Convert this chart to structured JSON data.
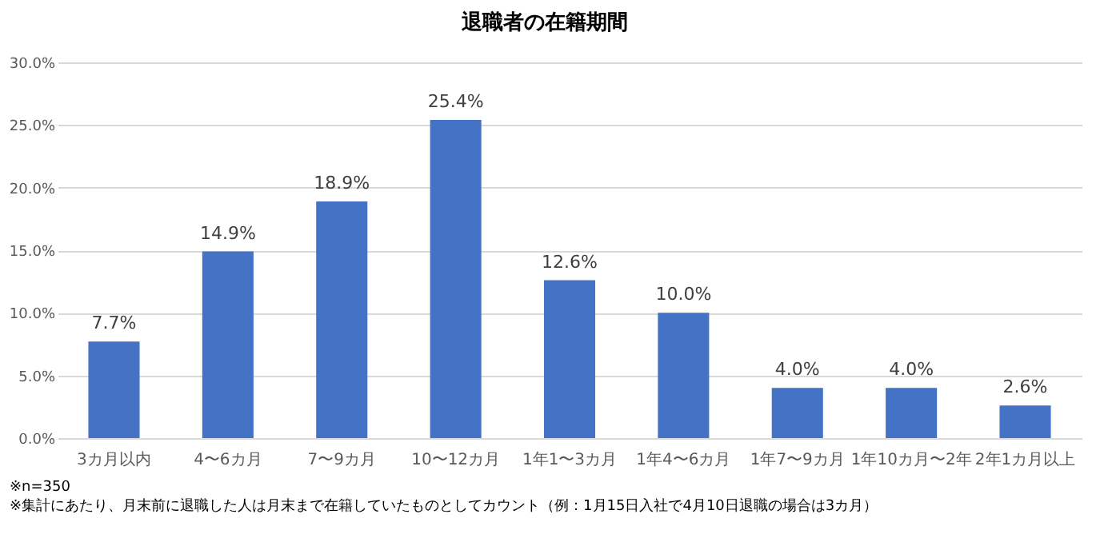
{
  "chart_data": {
    "type": "bar",
    "title": "退職者の在籍期間",
    "categories": [
      "3カ月以内",
      "4〜6カ月",
      "7〜9カ月",
      "10〜12カ月",
      "1年1〜3カ月",
      "1年4〜6カ月",
      "1年7〜9カ月",
      "1年10カ月〜2年",
      "2年1カ月以上"
    ],
    "values": [
      7.7,
      14.9,
      18.9,
      25.4,
      12.6,
      10.0,
      4.0,
      4.0,
      2.6
    ],
    "color": "#4472c4",
    "value_labels": [
      "7.7%",
      "14.9%",
      "18.9%",
      "25.4%",
      "12.6%",
      "10.0%",
      "4.0%",
      "4.0%",
      "2.6%"
    ],
    "ylim": [
      0,
      30
    ],
    "yticks": [
      {
        "value": 0,
        "label": "0.0%"
      },
      {
        "value": 5,
        "label": "5.0%"
      },
      {
        "value": 10,
        "label": "10.0%"
      },
      {
        "value": 15,
        "label": "15.0%"
      },
      {
        "value": 20,
        "label": "20.0%"
      },
      {
        "value": 25,
        "label": "25.0%"
      },
      {
        "value": 30,
        "label": "30.0%"
      }
    ],
    "grid": "y",
    "annotations": [
      "※n=350",
      "※集計にあたり、月末前に退職した人は月末まで在籍していたものとしてカウント（例：1月15日入社で4月10日退職の場合は3カ月）"
    ]
  }
}
